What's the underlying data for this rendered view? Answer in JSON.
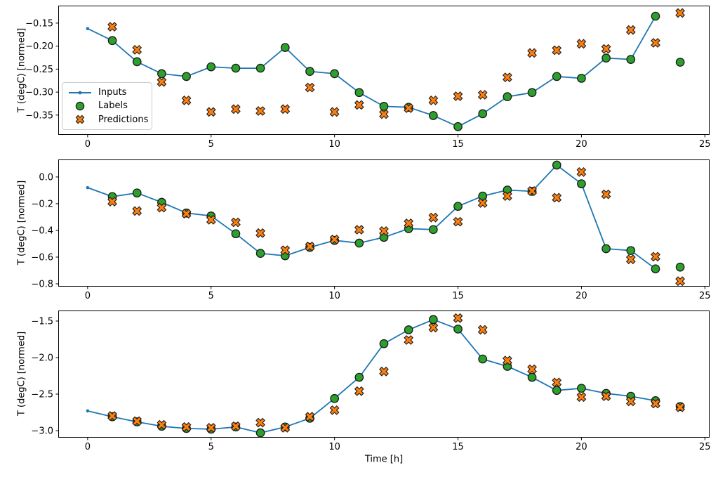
{
  "figure": {
    "background": "#ffffff",
    "kind": "matplotlib-3-row-time-series"
  },
  "axes": {
    "ylabel": "T (degC) [normed]",
    "xlabel": "Time [h]"
  },
  "legend": {
    "location": "center-left-of-first-subplot",
    "items": [
      {
        "label": "Inputs",
        "marker": "line-with-dot",
        "color": "#1f77b4"
      },
      {
        "label": "Labels",
        "marker": "circle",
        "color": "#2ca02c"
      },
      {
        "label": "Predictions",
        "marker": "X",
        "color": "#ff7f0e"
      }
    ]
  },
  "colors": {
    "inputs_line": "#1f77b4",
    "labels_marker": "#2ca02c",
    "predictions_marker": "#ff7f0e",
    "marker_edge": "#1a1a1a",
    "spine": "#000000",
    "text": "#000000",
    "legend_border": "#cccccc"
  },
  "chart_data": [
    {
      "type": "line",
      "subplot": 1,
      "ylabel": "T (degC) [normed]",
      "xlabel": "",
      "grid": false,
      "xlim": [
        -1.19,
        25.19
      ],
      "ylim": [
        -0.393,
        -0.112
      ],
      "xticks": [
        0,
        5,
        10,
        15,
        20,
        25
      ],
      "xtick_labels": [
        "0",
        "5",
        "10",
        "15",
        "20",
        "25"
      ],
      "yticks": [
        -0.15,
        -0.2,
        -0.25,
        -0.3,
        -0.35
      ],
      "ytick_labels": [
        "−0.15",
        "−0.20",
        "−0.25",
        "−0.30",
        "−0.35"
      ],
      "series": [
        {
          "name": "Inputs",
          "type": "line",
          "marker": "point",
          "color": "#1f77b4",
          "x": [
            0,
            1,
            2,
            3,
            4,
            5,
            6,
            7,
            8,
            9,
            10,
            11,
            12,
            13,
            14,
            15,
            16,
            17,
            18,
            19,
            20,
            21,
            22,
            23
          ],
          "y": [
            -0.162,
            -0.188,
            -0.234,
            -0.26,
            -0.266,
            -0.245,
            -0.248,
            -0.248,
            -0.203,
            -0.255,
            -0.26,
            -0.301,
            -0.331,
            -0.333,
            -0.351,
            -0.375,
            -0.347,
            -0.31,
            -0.301,
            -0.266,
            -0.27,
            -0.226,
            -0.229,
            -0.135
          ]
        },
        {
          "name": "Labels",
          "type": "scatter",
          "marker": "circle",
          "color": "#2ca02c",
          "x": [
            1,
            2,
            3,
            4,
            5,
            6,
            7,
            8,
            9,
            10,
            11,
            12,
            13,
            14,
            15,
            16,
            17,
            18,
            19,
            20,
            21,
            22,
            23,
            24
          ],
          "y": [
            -0.188,
            -0.234,
            -0.26,
            -0.266,
            -0.245,
            -0.248,
            -0.248,
            -0.203,
            -0.255,
            -0.26,
            -0.301,
            -0.331,
            -0.333,
            -0.351,
            -0.375,
            -0.347,
            -0.31,
            -0.301,
            -0.266,
            -0.27,
            -0.226,
            -0.229,
            -0.135,
            -0.235
          ]
        },
        {
          "name": "Predictions",
          "type": "scatter",
          "marker": "X",
          "color": "#ff7f0e",
          "x": [
            1,
            2,
            3,
            4,
            5,
            6,
            7,
            8,
            9,
            10,
            11,
            12,
            13,
            14,
            15,
            16,
            17,
            18,
            19,
            20,
            21,
            22,
            23,
            24
          ],
          "y": [
            -0.158,
            -0.208,
            -0.278,
            -0.318,
            -0.343,
            -0.337,
            -0.341,
            -0.337,
            -0.29,
            -0.343,
            -0.328,
            -0.348,
            -0.335,
            -0.318,
            -0.309,
            -0.306,
            -0.268,
            -0.215,
            -0.209,
            -0.195,
            -0.206,
            -0.165,
            -0.193,
            -0.128
          ]
        }
      ]
    },
    {
      "type": "line",
      "subplot": 2,
      "ylabel": "T (degC) [normed]",
      "xlabel": "",
      "grid": false,
      "xlim": [
        -1.19,
        25.19
      ],
      "ylim": [
        -0.821,
        0.131
      ],
      "xticks": [
        0,
        5,
        10,
        15,
        20,
        25
      ],
      "xtick_labels": [
        "0",
        "5",
        "10",
        "15",
        "20",
        "25"
      ],
      "yticks": [
        0.0,
        -0.2,
        -0.4,
        -0.6,
        -0.8
      ],
      "ytick_labels": [
        "0.0",
        "−0.2",
        "−0.4",
        "−0.6",
        "−0.8"
      ],
      "series": [
        {
          "name": "Inputs",
          "type": "line",
          "marker": "point",
          "color": "#1f77b4",
          "x": [
            0,
            1,
            2,
            3,
            4,
            5,
            6,
            7,
            8,
            9,
            10,
            11,
            12,
            13,
            14,
            15,
            16,
            17,
            18,
            19,
            20,
            21,
            22,
            23
          ],
          "y": [
            -0.08,
            -0.147,
            -0.12,
            -0.19,
            -0.27,
            -0.292,
            -0.425,
            -0.572,
            -0.59,
            -0.527,
            -0.475,
            -0.495,
            -0.452,
            -0.387,
            -0.394,
            -0.22,
            -0.143,
            -0.098,
            -0.108,
            0.089,
            -0.051,
            -0.537,
            -0.551,
            -0.688
          ]
        },
        {
          "name": "Labels",
          "type": "scatter",
          "marker": "circle",
          "color": "#2ca02c",
          "x": [
            1,
            2,
            3,
            4,
            5,
            6,
            7,
            8,
            9,
            10,
            11,
            12,
            13,
            14,
            15,
            16,
            17,
            18,
            19,
            20,
            21,
            22,
            23,
            24
          ],
          "y": [
            -0.147,
            -0.12,
            -0.19,
            -0.27,
            -0.292,
            -0.425,
            -0.572,
            -0.59,
            -0.527,
            -0.475,
            -0.495,
            -0.452,
            -0.387,
            -0.394,
            -0.22,
            -0.143,
            -0.098,
            -0.108,
            0.089,
            -0.051,
            -0.537,
            -0.551,
            -0.688,
            -0.675
          ]
        },
        {
          "name": "Predictions",
          "type": "scatter",
          "marker": "X",
          "color": "#ff7f0e",
          "x": [
            1,
            2,
            3,
            4,
            5,
            6,
            7,
            8,
            9,
            10,
            11,
            12,
            13,
            14,
            15,
            16,
            17,
            18,
            19,
            20,
            21,
            22,
            23,
            24
          ],
          "y": [
            -0.185,
            -0.255,
            -0.23,
            -0.275,
            -0.321,
            -0.34,
            -0.42,
            -0.548,
            -0.52,
            -0.468,
            -0.395,
            -0.405,
            -0.347,
            -0.304,
            -0.335,
            -0.195,
            -0.143,
            -0.105,
            -0.155,
            0.037,
            -0.13,
            -0.617,
            -0.597,
            -0.78
          ]
        }
      ]
    },
    {
      "type": "line",
      "subplot": 3,
      "ylabel": "T (degC) [normed]",
      "xlabel": "Time [h]",
      "grid": false,
      "xlim": [
        -1.19,
        25.19
      ],
      "ylim": [
        -3.096,
        -1.356
      ],
      "xticks": [
        0,
        5,
        10,
        15,
        20,
        25
      ],
      "xtick_labels": [
        "0",
        "5",
        "10",
        "15",
        "20",
        "25"
      ],
      "yticks": [
        -1.5,
        -2.0,
        -2.5,
        -3.0
      ],
      "ytick_labels": [
        "−1.5",
        "−2.0",
        "−2.5",
        "−3.0"
      ],
      "series": [
        {
          "name": "Inputs",
          "type": "line",
          "marker": "point",
          "color": "#1f77b4",
          "x": [
            0,
            1,
            2,
            3,
            4,
            5,
            6,
            7,
            8,
            9,
            10,
            11,
            12,
            13,
            14,
            15,
            16,
            17,
            18,
            19,
            20,
            21,
            22,
            23
          ],
          "y": [
            -2.73,
            -2.81,
            -2.88,
            -2.94,
            -2.97,
            -2.98,
            -2.95,
            -3.03,
            -2.95,
            -2.83,
            -2.56,
            -2.27,
            -1.81,
            -1.62,
            -1.48,
            -1.61,
            -2.02,
            -2.12,
            -2.27,
            -2.45,
            -2.42,
            -2.49,
            -2.53,
            -2.59
          ]
        },
        {
          "name": "Labels",
          "type": "scatter",
          "marker": "circle",
          "color": "#2ca02c",
          "x": [
            1,
            2,
            3,
            4,
            5,
            6,
            7,
            8,
            9,
            10,
            11,
            12,
            13,
            14,
            15,
            16,
            17,
            18,
            19,
            20,
            21,
            22,
            23,
            24
          ],
          "y": [
            -2.81,
            -2.88,
            -2.94,
            -2.97,
            -2.98,
            -2.95,
            -3.03,
            -2.95,
            -2.83,
            -2.56,
            -2.27,
            -1.81,
            -1.62,
            -1.48,
            -1.61,
            -2.02,
            -2.12,
            -2.27,
            -2.45,
            -2.42,
            -2.49,
            -2.53,
            -2.59,
            -2.67
          ]
        },
        {
          "name": "Predictions",
          "type": "scatter",
          "marker": "X",
          "color": "#ff7f0e",
          "x": [
            1,
            2,
            3,
            4,
            5,
            6,
            7,
            8,
            9,
            10,
            11,
            12,
            13,
            14,
            15,
            16,
            17,
            18,
            19,
            20,
            21,
            22,
            23,
            24
          ],
          "y": [
            -2.8,
            -2.87,
            -2.92,
            -2.95,
            -2.96,
            -2.94,
            -2.89,
            -2.96,
            -2.81,
            -2.72,
            -2.46,
            -2.19,
            -1.76,
            -1.59,
            -1.46,
            -1.62,
            -2.04,
            -2.16,
            -2.34,
            -2.54,
            -2.53,
            -2.6,
            -2.63,
            -2.68
          ]
        }
      ]
    }
  ]
}
